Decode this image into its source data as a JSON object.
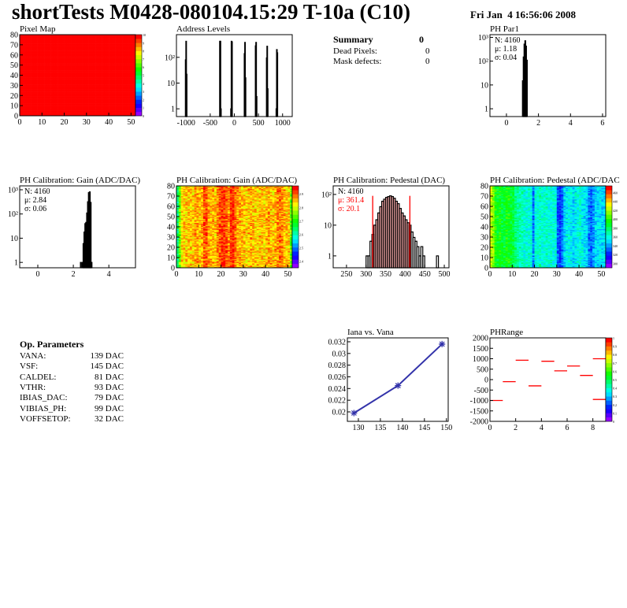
{
  "header": {
    "title": "shortTests M0428-080104.15:29 T-10a (C10)",
    "date": "Fri Jan  4 16:56:06 2008"
  },
  "summary": {
    "title": "Summary",
    "total": "0",
    "rows": [
      {
        "label": "Dead Pixels:",
        "value": "0"
      },
      {
        "label": "Mask defects:",
        "value": "0"
      }
    ]
  },
  "op_parameters": {
    "title": "Op. Parameters",
    "rows": [
      {
        "label": "VANA:",
        "value": "139 DAC"
      },
      {
        "label": "VSF:",
        "value": "145 DAC"
      },
      {
        "label": "CALDEL:",
        "value": "81 DAC"
      },
      {
        "label": "VTHR:",
        "value": "93 DAC"
      },
      {
        "label": "IBIAS_DAC:",
        "value": "79 DAC"
      },
      {
        "label": "VIBIAS_PH:",
        "value": "99 DAC"
      },
      {
        "label": "VOFFSETOP:",
        "value": "32 DAC"
      }
    ]
  },
  "colors": {
    "line": "#000000",
    "fit": "#ff0000",
    "graph": "#3333aa",
    "phrange": "#ff0000"
  },
  "chart_data": [
    {
      "id": "pixel_map",
      "type": "heatmap",
      "title": "Pixel Map",
      "xlim": [
        0,
        52
      ],
      "ylim": [
        0,
        80
      ],
      "zlim": [
        0,
        10
      ],
      "xticks": [
        0,
        10,
        20,
        30,
        40,
        50
      ],
      "yticks": [
        0,
        10,
        20,
        30,
        40,
        50,
        60,
        70,
        80
      ],
      "zticks": [
        0,
        1,
        2,
        3,
        4,
        5,
        6,
        7,
        8,
        9,
        10
      ],
      "column_mean": [
        10
      ],
      "noise": 0
    },
    {
      "id": "address_levels",
      "type": "bar",
      "title": "Address Levels",
      "logy": true,
      "xlim": [
        -1200,
        1200
      ],
      "ylim": [
        0.5,
        760
      ],
      "bin_width": 10,
      "xticks": [
        -1000,
        -500,
        0,
        500,
        1000
      ],
      "yticks": [
        {
          "v": 1,
          "t": "1"
        },
        {
          "v": 10,
          "t": "10"
        },
        {
          "v": 100,
          "t": "10²"
        }
      ],
      "bins": [
        [
          -1015,
          80
        ],
        [
          -1005,
          420
        ],
        [
          -995,
          22
        ],
        [
          -305,
          420
        ],
        [
          -295,
          420
        ],
        [
          -285,
          1
        ],
        [
          -75,
          1
        ],
        [
          -65,
          420
        ],
        [
          -55,
          400
        ],
        [
          205,
          140
        ],
        [
          215,
          380
        ],
        [
          225,
          16
        ],
        [
          435,
          280
        ],
        [
          445,
          380
        ],
        [
          455,
          3
        ],
        [
          665,
          95
        ],
        [
          675,
          270
        ],
        [
          685,
          6
        ],
        [
          865,
          1
        ],
        [
          875,
          200
        ],
        [
          885,
          150
        ]
      ]
    },
    {
      "id": "ph_par1",
      "type": "bar",
      "title": "PH Par1",
      "logy": true,
      "xlim": [
        -1.03,
        6.2
      ],
      "ylim": [
        0.47,
        1300
      ],
      "bin_width": 0.05,
      "xticks": [
        0,
        2,
        4,
        6
      ],
      "yticks": [
        {
          "v": 1,
          "t": "1"
        },
        {
          "v": 10,
          "t": "10"
        },
        {
          "v": 100,
          "t": "10²"
        },
        {
          "v": 1000,
          "t": "10³"
        }
      ],
      "stats": [
        {
          "t": "N: 4160",
          "c": "#000"
        },
        {
          "t": "μ: 1.18",
          "c": "#000"
        },
        {
          "t": "σ: 0.04",
          "c": "#000"
        }
      ],
      "bins": [
        [
          1.0,
          15
        ],
        [
          1.05,
          150
        ],
        [
          1.1,
          520
        ],
        [
          1.15,
          720
        ],
        [
          1.2,
          430
        ],
        [
          1.25,
          110
        ]
      ]
    },
    {
      "id": "gain_hist",
      "type": "bar",
      "title": "PH Calibration: Gain (ADC/DAC)",
      "logy": true,
      "xlim": [
        -1.02,
        5.5
      ],
      "ylim": [
        0.6,
        1450
      ],
      "bin_width": 0.05,
      "xticks": [
        0,
        2,
        4
      ],
      "yticks": [
        {
          "v": 1,
          "t": "1"
        },
        {
          "v": 10,
          "t": "10"
        },
        {
          "v": 100,
          "t": "10²"
        },
        {
          "v": 1000,
          "t": "10³"
        }
      ],
      "stats": [
        {
          "t": "N: 4160",
          "c": "#000"
        },
        {
          "t": "μ: 2.84",
          "c": "#000"
        },
        {
          "t": "σ: 0.06",
          "c": "#000"
        }
      ],
      "bins": [
        [
          2.4,
          1
        ],
        [
          2.5,
          1
        ],
        [
          2.55,
          6
        ],
        [
          2.6,
          18
        ],
        [
          2.65,
          40
        ],
        [
          2.7,
          45
        ],
        [
          2.75,
          110
        ],
        [
          2.8,
          320
        ],
        [
          2.85,
          760
        ],
        [
          2.9,
          820
        ],
        [
          2.95,
          300
        ],
        [
          3.0,
          1
        ]
      ]
    },
    {
      "id": "gain_map",
      "type": "heatmap",
      "title": "PH Calibration: Gain (ADC/DAC)",
      "xlim": [
        0,
        52
      ],
      "ylim": [
        0,
        80
      ],
      "zlim": [
        2.35,
        2.96
      ],
      "xticks": [
        0,
        10,
        20,
        30,
        40,
        50
      ],
      "yticks": [
        0,
        10,
        20,
        30,
        40,
        50,
        60,
        70,
        80
      ],
      "zticks": [
        2.4,
        2.5,
        2.6,
        2.7,
        2.8,
        2.9
      ],
      "noise": 0.05,
      "column_mean": [
        2.62,
        2.74,
        2.83,
        2.84,
        2.84,
        2.85,
        2.85,
        2.84,
        2.87,
        2.86,
        2.85,
        2.86,
        2.9,
        2.9,
        2.86,
        2.85,
        2.86,
        2.85,
        2.88,
        2.9,
        2.92,
        2.92,
        2.9,
        2.88,
        2.92,
        2.93,
        2.89,
        2.87,
        2.86,
        2.85,
        2.85,
        2.84,
        2.85,
        2.86,
        2.85,
        2.84,
        2.84,
        2.85,
        2.85,
        2.84,
        2.85,
        2.86,
        2.85,
        2.84,
        2.86,
        2.88,
        2.89,
        2.88,
        2.86,
        2.85,
        2.85,
        2.74
      ]
    },
    {
      "id": "pedestal_hist",
      "type": "bar",
      "title": "PH Calibration: Pedestal (DAC)",
      "logy": true,
      "xlim": [
        216,
        512
      ],
      "ylim": [
        0.41,
        190
      ],
      "bin_width": 5,
      "xticks": [
        250,
        300,
        350,
        400,
        450,
        500
      ],
      "yticks": [
        {
          "v": 1,
          "t": "1"
        },
        {
          "v": 10,
          "t": "10"
        },
        {
          "v": 100,
          "t": "10²"
        }
      ],
      "stats": [
        {
          "t": "N: 4160",
          "c": "#000"
        },
        {
          "t": "μ: 361.4",
          "c": "#ff0000"
        },
        {
          "t": "σ: 20.1",
          "c": "#ff0000"
        }
      ],
      "fit_range": [
        317,
        412
      ],
      "fit_height": 90,
      "bins": [
        [
          300,
          1
        ],
        [
          305,
          1
        ],
        [
          310,
          3
        ],
        [
          315,
          5
        ],
        [
          320,
          10
        ],
        [
          325,
          15
        ],
        [
          330,
          25
        ],
        [
          335,
          40
        ],
        [
          340,
          60
        ],
        [
          345,
          70
        ],
        [
          350,
          80
        ],
        [
          355,
          85
        ],
        [
          360,
          90
        ],
        [
          365,
          85
        ],
        [
          370,
          75
        ],
        [
          375,
          60
        ],
        [
          380,
          50
        ],
        [
          385,
          35
        ],
        [
          390,
          25
        ],
        [
          395,
          20
        ],
        [
          400,
          15
        ],
        [
          405,
          12
        ],
        [
          410,
          10
        ],
        [
          415,
          6
        ],
        [
          420,
          4
        ],
        [
          425,
          3
        ],
        [
          430,
          2
        ],
        [
          435,
          1
        ],
        [
          440,
          2
        ],
        [
          445,
          1
        ],
        [
          480,
          1
        ]
      ]
    },
    {
      "id": "pedestal_map",
      "type": "heatmap",
      "title": "PH Calibration: Pedestal (ADC/DAC",
      "xlim": [
        0,
        52
      ],
      "ylim": [
        0,
        80
      ],
      "zlim": [
        290,
        475
      ],
      "xticks": [
        0,
        10,
        20,
        30,
        40,
        50
      ],
      "yticks": [
        0,
        10,
        20,
        30,
        40,
        50,
        60,
        70,
        80
      ],
      "zticks": [
        300,
        320,
        340,
        360,
        380,
        400,
        420,
        440,
        460
      ],
      "noise": 12,
      "column_mean": [
        425,
        415,
        395,
        390,
        392,
        388,
        385,
        395,
        392,
        388,
        385,
        375,
        370,
        368,
        365,
        362,
        360,
        362,
        358,
        335,
        360,
        362,
        365,
        360,
        362,
        365,
        360,
        362,
        360,
        358,
        330,
        325,
        335,
        350,
        355,
        358,
        355,
        352,
        355,
        358,
        360,
        355,
        352,
        350,
        335,
        332,
        340,
        350,
        352,
        355,
        350,
        352
      ]
    },
    {
      "id": "iana_vs_vana",
      "type": "line",
      "title": "Iana vs. Vana",
      "xlim": [
        127.5,
        150.4
      ],
      "ylim": [
        0.01838,
        0.03267
      ],
      "xticks": [
        130,
        135,
        140,
        145,
        150
      ],
      "yticks": [
        0.02,
        0.022,
        0.024,
        0.026,
        0.028,
        0.03,
        0.032
      ],
      "x": [
        129,
        139,
        149
      ],
      "y": [
        0.0198,
        0.0245,
        0.0316
      ]
    },
    {
      "id": "ph_range",
      "type": "heatmap-segments",
      "title": "PHRange",
      "xlim": [
        0,
        9
      ],
      "ylim": [
        -2000,
        2000
      ],
      "zlim": [
        0,
        1
      ],
      "xticks": [
        0,
        2,
        4,
        6,
        8
      ],
      "yticks": [
        -2000,
        -1500,
        -1000,
        -500,
        0,
        500,
        1000,
        1500,
        2000
      ],
      "zticks": [
        0,
        0.1,
        0.2,
        0.3,
        0.4,
        0.5,
        0.6,
        0.7,
        0.8,
        0.9,
        1
      ],
      "segments": [
        [
          0,
          -1000
        ],
        [
          1,
          -100
        ],
        [
          2,
          930
        ],
        [
          3,
          -300
        ],
        [
          4,
          880
        ],
        [
          5,
          420
        ],
        [
          6,
          650
        ],
        [
          7,
          200
        ],
        [
          8,
          1000
        ],
        [
          8,
          -950
        ]
      ]
    }
  ]
}
